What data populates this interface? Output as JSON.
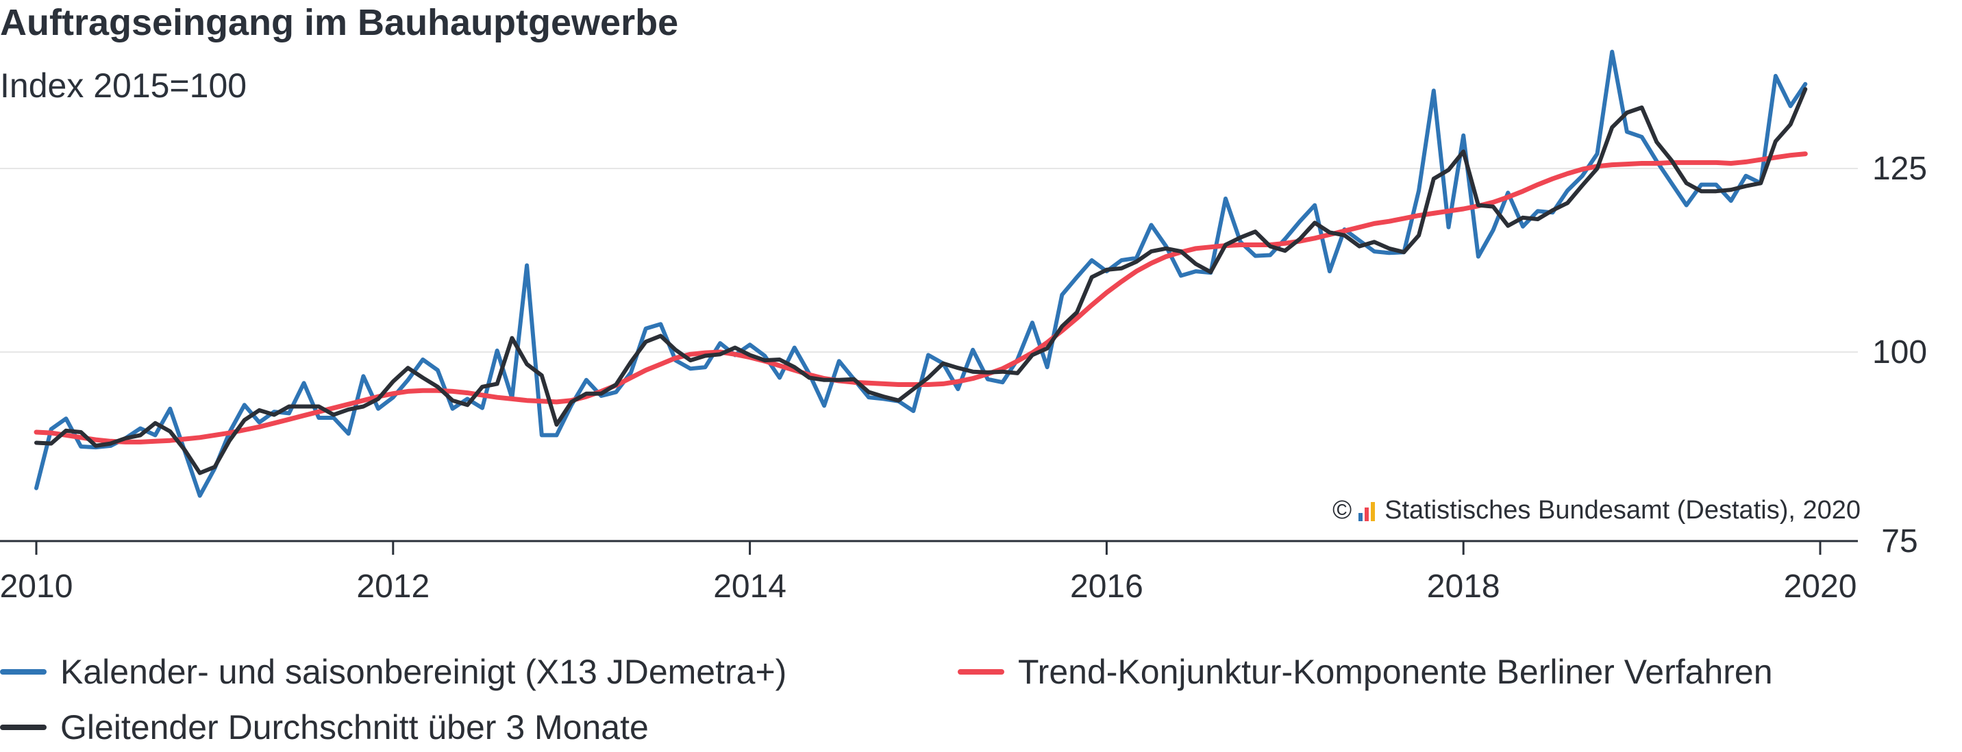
{
  "header": {
    "title": "Auftragseingang im Bauhauptgewerbe",
    "subtitle": "Index 2015=100"
  },
  "credit": {
    "copyright_symbol": "©",
    "text": "Statistisches Bundesamt (Destatis), 2020"
  },
  "colors": {
    "series_adjusted": "#2f75b5",
    "series_trend": "#ef4652",
    "series_moving_avg": "#2b2f36",
    "axis": "#2b313a",
    "grid": "#e6e6e6"
  },
  "chart_data": {
    "type": "line",
    "x_axis": {
      "type": "date",
      "range": [
        2010.0,
        2020.0
      ],
      "ticks": [
        "2010",
        "2012",
        "2014",
        "2016",
        "2018",
        "2020"
      ]
    },
    "y_axis": {
      "position": "right",
      "range": [
        75,
        140
      ],
      "ticks": [
        "75",
        "100",
        "125"
      ]
    },
    "grid": "horizontal",
    "legend_position": "bottom",
    "series": [
      {
        "key": "adjusted",
        "name": "Kalender- und saisonbereinigt (X13 JDemetra+)",
        "start": "2010-01",
        "values": [
          82.0,
          89.8,
          91.2,
          87.5,
          87.4,
          87.6,
          88.6,
          89.9,
          89.0,
          92.5,
          86.8,
          81.0,
          84.6,
          89.4,
          93.0,
          90.7,
          92.1,
          91.9,
          95.9,
          91.3,
          91.3,
          89.2,
          96.8,
          92.5,
          94.0,
          96.3,
          99.0,
          97.6,
          92.5,
          93.8,
          92.6,
          100.2,
          93.9,
          111.8,
          89.0,
          89.0,
          93.0,
          96.3,
          94.2,
          94.7,
          97.3,
          103.2,
          103.8,
          98.9,
          97.8,
          98.0,
          101.2,
          99.6,
          101.0,
          99.5,
          96.6,
          100.6,
          97.1,
          92.9,
          98.8,
          96.4,
          94.0,
          93.8,
          93.5,
          92.2,
          99.6,
          98.5,
          95.1,
          100.3,
          96.4,
          96.0,
          99.0,
          104.0,
          98.0,
          107.8,
          110.2,
          112.5,
          111.0,
          112.5,
          112.8,
          117.3,
          114.4,
          110.4,
          111.0,
          110.8,
          120.9,
          115.0,
          113.1,
          113.2,
          115.4,
          117.8,
          120.0,
          111.0,
          116.7,
          115.2,
          113.7,
          113.5,
          113.6,
          122.0,
          135.6,
          117.0,
          129.5,
          113.0,
          116.6,
          121.7,
          117.1,
          119.2,
          119.0,
          122.0,
          124.0,
          127.0,
          140.9,
          130.0,
          129.3,
          126.0,
          123.0,
          120.0,
          122.8,
          122.8,
          120.6,
          124.0,
          123.0,
          137.6,
          133.5,
          136.5
        ]
      },
      {
        "key": "trend",
        "name": "Trend-Konjunktur-Komponente Berliner Verfahren",
        "start": "2010-01",
        "values": [
          89.4,
          89.3,
          89.0,
          88.7,
          88.4,
          88.2,
          88.1,
          88.1,
          88.2,
          88.3,
          88.5,
          88.7,
          89.0,
          89.3,
          89.7,
          90.1,
          90.6,
          91.1,
          91.6,
          92.1,
          92.6,
          93.1,
          93.6,
          94.1,
          94.5,
          94.8,
          94.9,
          94.9,
          94.8,
          94.6,
          94.3,
          94.0,
          93.8,
          93.6,
          93.5,
          93.4,
          93.6,
          94.1,
          94.8,
          95.6,
          96.6,
          97.6,
          98.4,
          99.2,
          99.7,
          99.9,
          100.0,
          99.7,
          99.3,
          98.8,
          98.2,
          97.6,
          97.0,
          96.5,
          96.2,
          96.0,
          95.9,
          95.8,
          95.7,
          95.7,
          95.7,
          95.8,
          96.1,
          96.5,
          97.1,
          97.8,
          98.8,
          99.9,
          101.3,
          102.9,
          104.6,
          106.4,
          108.1,
          109.6,
          111.0,
          112.1,
          113.0,
          113.6,
          114.1,
          114.3,
          114.5,
          114.6,
          114.6,
          114.6,
          114.8,
          115.1,
          115.5,
          116.0,
          116.5,
          117.0,
          117.5,
          117.8,
          118.2,
          118.6,
          118.9,
          119.2,
          119.5,
          119.9,
          120.4,
          121.1,
          121.9,
          122.8,
          123.6,
          124.3,
          124.9,
          125.3,
          125.5,
          125.6,
          125.7,
          125.7,
          125.8,
          125.8,
          125.8,
          125.8,
          125.7,
          125.9,
          126.2,
          126.5,
          126.8,
          127.0
        ]
      },
      {
        "key": "moving_avg",
        "name": "Gleitender Durchschnitt über 3 Monate",
        "start": "2010-01",
        "values": [
          88.0,
          87.9,
          89.6,
          89.4,
          87.6,
          87.9,
          88.6,
          89.0,
          90.6,
          89.5,
          87.0,
          84.0,
          84.8,
          88.3,
          91.0,
          92.3,
          91.7,
          92.8,
          92.8,
          92.8,
          91.7,
          92.4,
          92.8,
          93.8,
          96.1,
          97.9,
          96.6,
          95.4,
          93.6,
          93.0,
          95.4,
          95.8,
          101.9,
          98.4,
          96.9,
          90.4,
          93.4,
          94.5,
          94.5,
          95.7,
          98.7,
          101.4,
          102.2,
          100.3,
          98.9,
          99.5,
          99.7,
          100.6,
          99.6,
          98.9,
          99.0,
          98.0,
          96.6,
          96.3,
          96.3,
          96.4,
          94.7,
          94.1,
          93.6,
          95.1,
          96.6,
          98.5,
          97.9,
          97.4,
          97.3,
          97.4,
          97.2,
          99.6,
          100.5,
          103.5,
          105.4,
          110.2,
          111.2,
          111.4,
          112.3,
          113.7,
          114.1,
          113.7,
          112.0,
          110.9,
          114.6,
          115.6,
          116.4,
          114.4,
          113.8,
          115.4,
          117.6,
          116.3,
          115.9,
          114.4,
          115.0,
          114.1,
          113.6,
          115.9,
          123.6,
          124.8,
          127.3,
          120.0,
          119.8,
          117.2,
          118.3,
          118.1,
          119.3,
          120.3,
          122.7,
          125.0,
          130.6,
          132.6,
          133.3,
          128.6,
          126.1,
          123.0,
          121.9,
          121.9,
          122.1,
          122.6,
          123.0,
          128.7,
          131.0,
          135.8
        ]
      }
    ],
    "legend": [
      {
        "key": "adjusted",
        "label": "Kalender- und saisonbereinigt (X13 JDemetra+)"
      },
      {
        "key": "trend",
        "label": "Trend-Konjunktur-Komponente Berliner Verfahren"
      },
      {
        "key": "moving_avg",
        "label": "Gleitender Durchschnitt über 3 Monate"
      }
    ]
  }
}
